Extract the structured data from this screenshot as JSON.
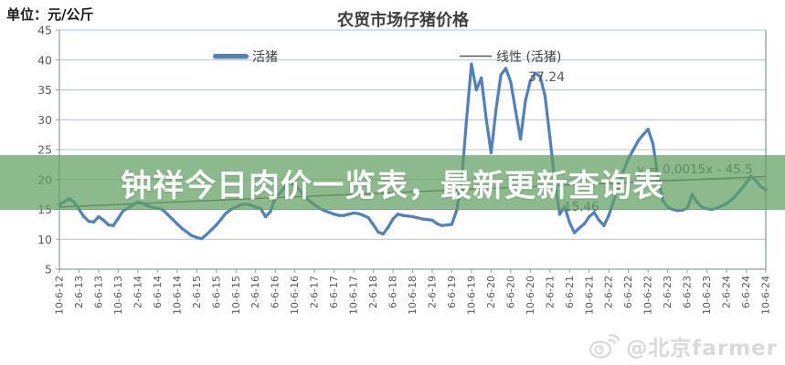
{
  "unit_label": "单位：元/公斤",
  "banner": {
    "title": "钟祥今日肉价一览表，最新更新查询表"
  },
  "watermark": {
    "text": "@北京farmer",
    "icon": "weibo-icon"
  },
  "colors": {
    "series": "#4f81bd",
    "trend": "#5a5a5a",
    "grid": "#b4bfc7",
    "axis": "#8ca0ab",
    "plot_border": "#7d97a2",
    "tick_text": "#595959",
    "title_text": "#3f3f3f",
    "banner_bg": "rgba(96,160,96,0.72)",
    "banner_text": "#ffffff",
    "watermark_text": "#d9d9d9"
  },
  "chart_data": {
    "type": "line",
    "title": "农贸市场仔猪价格",
    "unit": "元/公斤",
    "legend": [
      {
        "label": "活猪",
        "style": "thick-blue-line"
      },
      {
        "label": "线性 (活猪)",
        "style": "thin-gray-line"
      }
    ],
    "legend_position": "inside-top",
    "grid": true,
    "ylim": [
      5,
      45
    ],
    "y_ticks": [
      45,
      40,
      35,
      30,
      25,
      20,
      15,
      10,
      5
    ],
    "x_tick_labels": [
      "10-6-12",
      "2-6-13",
      "6-6-13",
      "10-6-13",
      "2-6-14",
      "6-6-14",
      "10-6-14",
      "2-6-15",
      "6-6-15",
      "10-6-15",
      "2-6-16",
      "6-6-16",
      "10-6-16",
      "2-6-17",
      "6-6-17",
      "10-6-17",
      "2-6-18",
      "6-6-18",
      "10-6-18",
      "2-6-19",
      "6-6-19",
      "10-6-19",
      "2-6-20",
      "6-6-20",
      "10-6-20",
      "2-6-21",
      "6-6-21",
      "10-6-21",
      "2-6-22",
      "6-6-22",
      "10-6-22",
      "2-6-23",
      "6-6-23",
      "10-6-23",
      "2-6-24",
      "6-6-24",
      "10-6-24"
    ],
    "series": [
      {
        "name": "活猪",
        "values": [
          15.8,
          16.3,
          16.8,
          16.2,
          15.0,
          13.8,
          13.0,
          12.9,
          13.8,
          13.2,
          12.4,
          12.3,
          13.5,
          14.8,
          15.2,
          15.8,
          16.2,
          16.0,
          15.6,
          15.3,
          15.2,
          15.0,
          14.2,
          13.4,
          12.6,
          11.8,
          11.2,
          10.6,
          10.3,
          10.1,
          10.8,
          11.6,
          12.4,
          13.4,
          14.4,
          15.0,
          15.4,
          15.8,
          15.9,
          15.7,
          15.4,
          15.2,
          13.8,
          14.6,
          16.9,
          17.8,
          18.8,
          19.5,
          19.0,
          18.2,
          17.2,
          16.4,
          15.8,
          15.2,
          14.8,
          14.5,
          14.2,
          14.0,
          14.0,
          14.2,
          14.4,
          14.3,
          14.0,
          13.6,
          12.4,
          11.2,
          10.9,
          12.0,
          13.4,
          14.2,
          14.0,
          13.9,
          13.8,
          13.6,
          13.4,
          13.3,
          13.2,
          12.6,
          12.3,
          12.4,
          12.5,
          14.9,
          20.0,
          30.0,
          39.3,
          35.0,
          37.0,
          30.2,
          24.5,
          31.7,
          37.5,
          38.6,
          36.3,
          31.5,
          26.8,
          33.2,
          36.5,
          37.8,
          37.24,
          34.0,
          27.0,
          19.5,
          14.2,
          15.46,
          12.8,
          11.1,
          11.9,
          12.6,
          13.8,
          14.5,
          13.2,
          12.3,
          14.0,
          16.5,
          19.0,
          21.5,
          23.5,
          25.0,
          26.5,
          27.5,
          28.4,
          26.0,
          20.5,
          16.5,
          15.4,
          15.0,
          14.8,
          14.9,
          15.2,
          17.5,
          16.2,
          15.4,
          15.1,
          15.0,
          15.2,
          15.6,
          16.0,
          16.6,
          17.4,
          18.4,
          19.4,
          20.6,
          19.8,
          18.8,
          18.3
        ]
      }
    ],
    "trendline": {
      "equation": "y = 0.0015x - 45.5",
      "start_value": 15.4,
      "end_value": 20.5
    },
    "annotations": [
      {
        "text": "37.24",
        "meaning": "peak value label"
      },
      {
        "text": "15.46",
        "meaning": "post-peak value label"
      },
      {
        "text": "y = 0.0015x - 45.5",
        "meaning": "trendline equation"
      }
    ]
  },
  "annotation_labels": {
    "peak": "37.24",
    "post_peak": "15.46",
    "equation": "y = 0.0015x - 45.5"
  }
}
